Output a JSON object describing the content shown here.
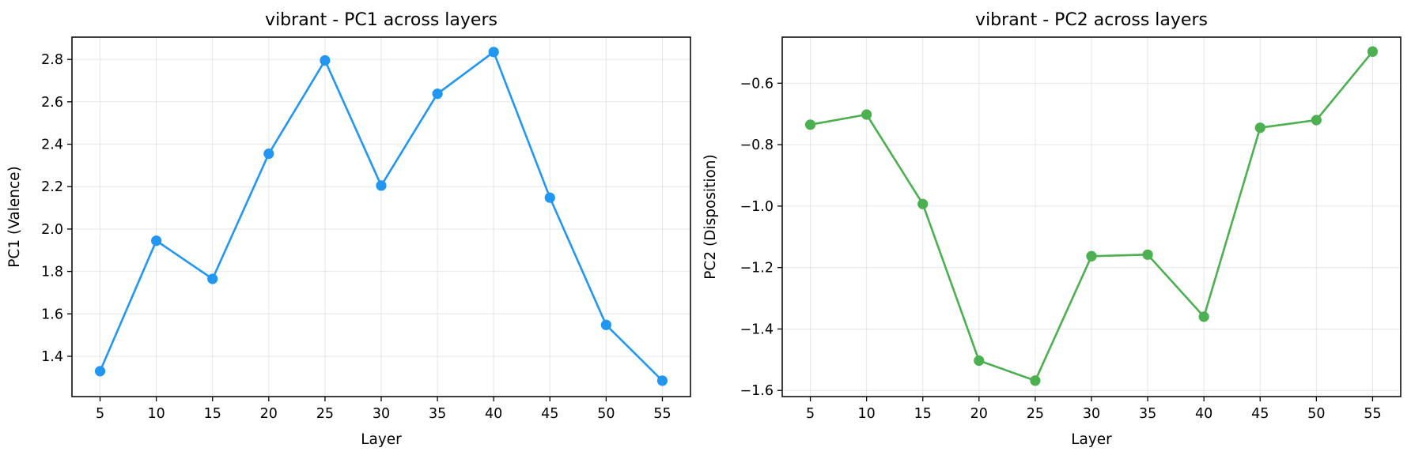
{
  "chart_data": [
    {
      "type": "line",
      "title": "vibrant - PC1 across layers",
      "xlabel": "Layer",
      "ylabel": "PC1 (Valence)",
      "x": [
        5,
        10,
        15,
        20,
        25,
        30,
        35,
        40,
        45,
        50,
        55
      ],
      "xticks": [
        "5",
        "10",
        "15",
        "20",
        "25",
        "30",
        "35",
        "40",
        "45",
        "50",
        "55"
      ],
      "xlim": [
        2.5,
        57.5
      ],
      "ylim": [
        1.21,
        2.905
      ],
      "yticks": [
        "1.4",
        "1.6",
        "1.8",
        "2.0",
        "2.2",
        "2.4",
        "2.6",
        "2.8"
      ],
      "ytick_values": [
        1.4,
        1.6,
        1.8,
        2.0,
        2.2,
        2.4,
        2.6,
        2.8
      ],
      "grid": true,
      "series": [
        {
          "color": "#2196f3",
          "marker": "circle",
          "values": [
            1.33,
            1.945,
            1.765,
            2.355,
            2.795,
            2.205,
            2.638,
            2.835,
            2.148,
            1.548,
            1.285
          ]
        }
      ]
    },
    {
      "type": "line",
      "title": "vibrant - PC2 across layers",
      "xlabel": "Layer",
      "ylabel": "PC2 (Disposition)",
      "x": [
        5,
        10,
        15,
        20,
        25,
        30,
        35,
        40,
        45,
        50,
        55
      ],
      "xticks": [
        "5",
        "10",
        "15",
        "20",
        "25",
        "30",
        "35",
        "40",
        "45",
        "50",
        "55"
      ],
      "xlim": [
        2.5,
        57.5
      ],
      "ylim": [
        -1.62,
        -0.45
      ],
      "yticks": [
        "−1.6",
        "−1.4",
        "−1.2",
        "−1.0",
        "−0.8",
        "−0.6"
      ],
      "ytick_values": [
        -1.6,
        -1.4,
        -1.2,
        -1.0,
        -0.8,
        -0.6
      ],
      "grid": true,
      "series": [
        {
          "color": "#4caf50",
          "marker": "circle",
          "values": [
            -0.735,
            -0.702,
            -0.993,
            -1.503,
            -1.568,
            -1.163,
            -1.158,
            -1.36,
            -0.745,
            -0.72,
            -0.497
          ]
        }
      ]
    }
  ]
}
